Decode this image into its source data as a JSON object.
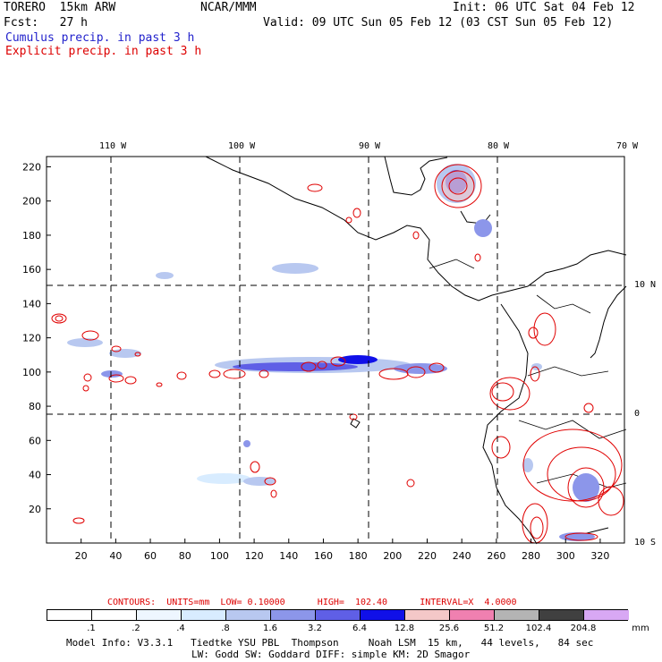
{
  "header": {
    "model": "TORERO  15km ARW",
    "org": "NCAR/MMM",
    "init": "Init: 06 UTC Sat 04 Feb 12",
    "fcst": "Fcst:   27 h",
    "valid": "Valid: 09 UTC Sun 05 Feb 12 (03 CST Sun 05 Feb 12)",
    "line_cumulus": "Cumulus precip. in past 3 h",
    "line_explicit": "Explicit precip. in past 3 h"
  },
  "map": {
    "top_lon_labels": [
      "110 W",
      "100 W",
      "90 W",
      "80 W",
      "70 W"
    ],
    "right_lat_labels": [
      "10 N",
      "0",
      "10 S"
    ],
    "y_ticks": [
      20,
      40,
      60,
      80,
      100,
      120,
      140,
      160,
      180,
      200,
      220
    ],
    "x_ticks": [
      20,
      40,
      60,
      80,
      100,
      120,
      140,
      160,
      180,
      200,
      220,
      240,
      260,
      280,
      300,
      320
    ],
    "x_range": [
      0,
      334
    ],
    "y_range": [
      0,
      226
    ]
  },
  "contours_line": "CONTOURS:  UNITS=mm  LOW= 0.10000      HIGH=  102.40      INTERVAL=X  4.0000",
  "colorbar": {
    "unit": "mm",
    "labels": [
      ".1",
      ".2",
      ".4",
      ".8",
      "1.6",
      "3.2",
      "6.4",
      "12.8",
      "25.6",
      "51.2",
      "102.4",
      "204.8"
    ],
    "colors": [
      "#ffffff",
      "#ffffff",
      "#eef6ff",
      "#d8ecff",
      "#b8c8f0",
      "#8c96ea",
      "#5f5fe6",
      "#1010e8",
      "#f4c8c8",
      "#f080b0",
      "#b4b4b4",
      "#404040",
      "#d8a8f4"
    ]
  },
  "footer": {
    "line1": "Model Info: V3.3.1   Tiedtke YSU PBL  Thompson     Noah LSM  15 km,   44 levels,   84 sec",
    "line2": "LW: Godd SW: Goddard DIFF: simple KM: 2D Smagor"
  }
}
